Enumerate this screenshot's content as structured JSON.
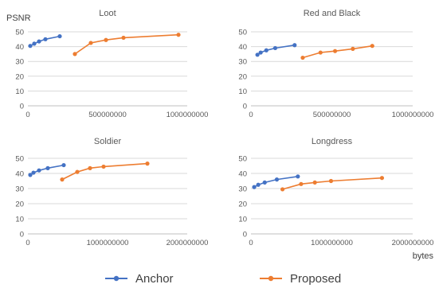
{
  "y_axis_label": "PSNR",
  "x_axis_label": "bytes",
  "legend": {
    "items": [
      {
        "label": "Anchor",
        "color": "#4472C4"
      },
      {
        "label": "Proposed",
        "color": "#ED7D31"
      }
    ]
  },
  "chart_data": [
    {
      "type": "line",
      "title": "Loot",
      "xlim": [
        0,
        1000000000
      ],
      "ylim": [
        0,
        50
      ],
      "x_ticks": [
        "0",
        "500000000",
        "1000000000"
      ],
      "y_ticks": [
        "0",
        "10",
        "20",
        "30",
        "40",
        "50"
      ],
      "series": [
        {
          "name": "Anchor",
          "color": "#4472C4",
          "x": [
            15000000,
            40000000,
            70000000,
            110000000,
            200000000
          ],
          "y": [
            40.5,
            42.0,
            43.5,
            45.0,
            47.0
          ]
        },
        {
          "name": "Proposed",
          "color": "#ED7D31",
          "x": [
            295000000,
            395000000,
            490000000,
            600000000,
            945000000
          ],
          "y": [
            35.0,
            42.5,
            44.5,
            46.0,
            48.0
          ]
        }
      ]
    },
    {
      "type": "line",
      "title": "Red and Black",
      "xlim": [
        0,
        1000000000
      ],
      "ylim": [
        0,
        50
      ],
      "x_ticks": [
        "0",
        "500000000",
        "1000000000"
      ],
      "y_ticks": [
        "0",
        "10",
        "20",
        "30",
        "40",
        "50"
      ],
      "series": [
        {
          "name": "Anchor",
          "color": "#4472C4",
          "x": [
            40000000,
            60000000,
            95000000,
            150000000,
            270000000
          ],
          "y": [
            34.5,
            36.0,
            37.5,
            39.0,
            41.0
          ]
        },
        {
          "name": "Proposed",
          "color": "#ED7D31",
          "x": [
            320000000,
            430000000,
            520000000,
            630000000,
            750000000
          ],
          "y": [
            32.5,
            36.0,
            37.0,
            38.5,
            40.5
          ]
        }
      ]
    },
    {
      "type": "line",
      "title": "Soldier",
      "xlim": [
        0,
        2000000000
      ],
      "ylim": [
        0,
        50
      ],
      "x_ticks": [
        "0",
        "1000000000",
        "2000000000"
      ],
      "y_ticks": [
        "0",
        "10",
        "20",
        "30",
        "40",
        "50"
      ],
      "series": [
        {
          "name": "Anchor",
          "color": "#4472C4",
          "x": [
            30000000,
            70000000,
            140000000,
            250000000,
            450000000
          ],
          "y": [
            39.0,
            40.5,
            42.0,
            43.5,
            45.5
          ]
        },
        {
          "name": "Proposed",
          "color": "#ED7D31",
          "x": [
            430000000,
            620000000,
            780000000,
            950000000,
            1500000000
          ],
          "y": [
            36.0,
            41.0,
            43.5,
            44.5,
            46.5
          ]
        }
      ]
    },
    {
      "type": "line",
      "title": "Longdress",
      "xlim": [
        0,
        2000000000
      ],
      "ylim": [
        0,
        50
      ],
      "x_ticks": [
        "0",
        "1000000000",
        "2000000000"
      ],
      "y_ticks": [
        "0",
        "10",
        "20",
        "30",
        "40",
        "50"
      ],
      "series": [
        {
          "name": "Anchor",
          "color": "#4472C4",
          "x": [
            40000000,
            90000000,
            170000000,
            320000000,
            580000000
          ],
          "y": [
            31.0,
            32.5,
            34.0,
            36.0,
            38.0
          ]
        },
        {
          "name": "Proposed",
          "color": "#ED7D31",
          "x": [
            390000000,
            620000000,
            790000000,
            990000000,
            1620000000
          ],
          "y": [
            29.5,
            33.0,
            34.0,
            35.0,
            37.0
          ]
        }
      ]
    }
  ]
}
